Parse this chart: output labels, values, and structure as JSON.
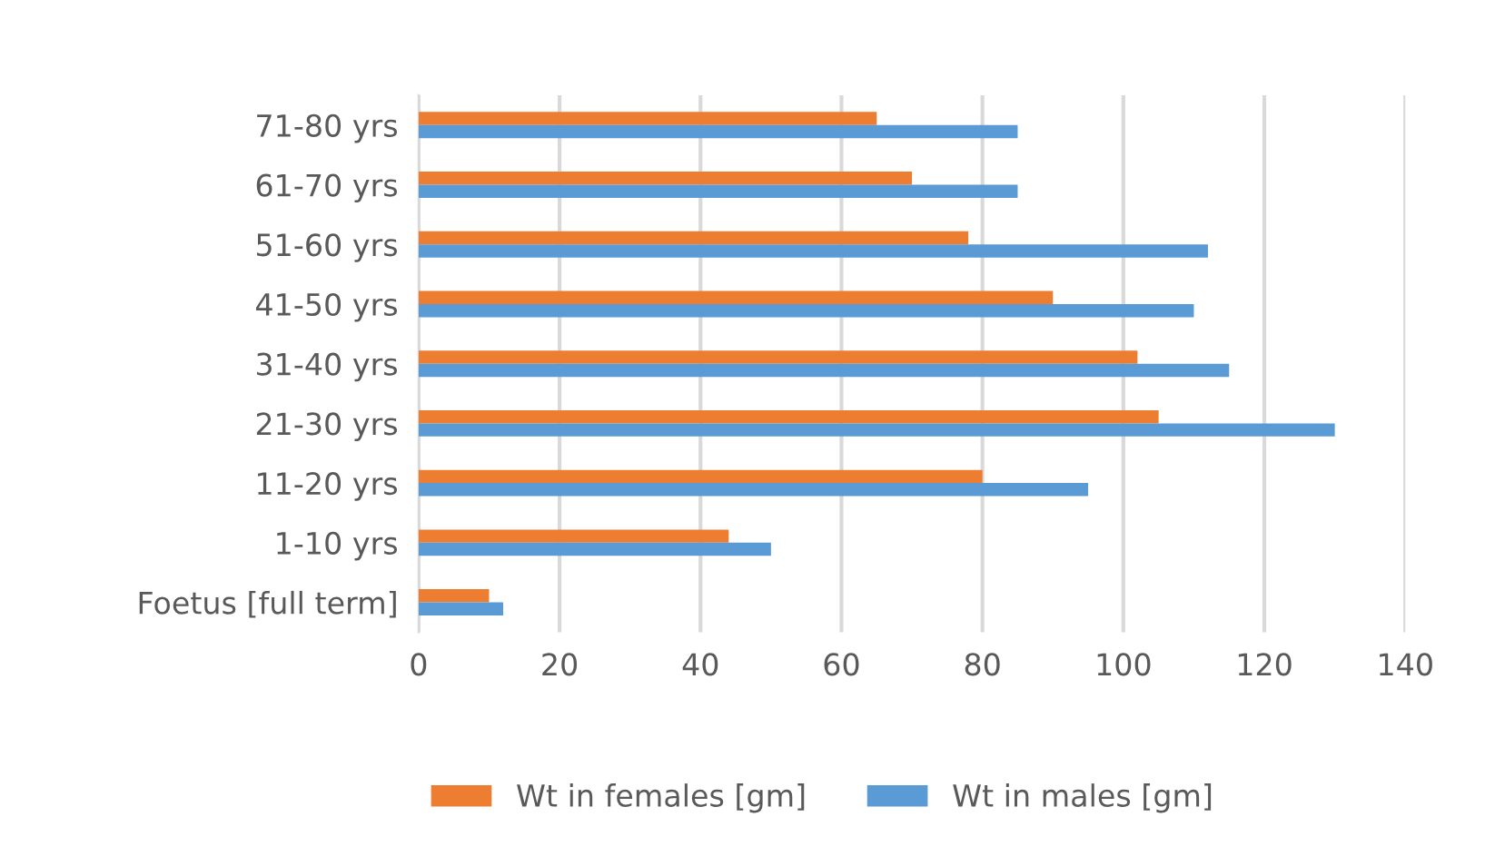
{
  "chart_data": {
    "type": "bar",
    "orientation": "horizontal",
    "categories": [
      "71-80 yrs",
      "61-70 yrs",
      "51-60 yrs",
      "41-50 yrs",
      "31-40 yrs",
      "21-30 yrs",
      "11-20 yrs",
      "1-10 yrs",
      "Foetus [full term]"
    ],
    "series": [
      {
        "name": "Wt in females [gm]",
        "color": "#ed7d31",
        "values": [
          65,
          70,
          78,
          90,
          102,
          105,
          80,
          44,
          10
        ]
      },
      {
        "name": "Wt in males [gm]",
        "color": "#5b9bd5",
        "values": [
          85,
          85,
          112,
          110,
          115,
          130,
          95,
          50,
          12
        ]
      }
    ],
    "xlim": [
      0,
      140
    ],
    "xticks": [
      0,
      20,
      40,
      60,
      80,
      100,
      120,
      140
    ],
    "grid": "x",
    "legend": "bottom"
  }
}
